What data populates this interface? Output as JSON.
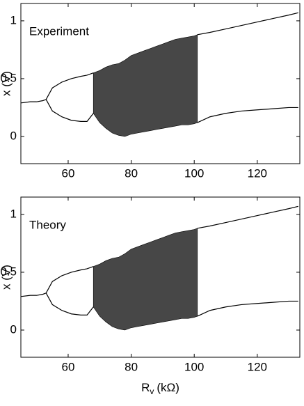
{
  "chart_data": [
    {
      "type": "line",
      "annotation": "Experiment",
      "ylabel": "x (V)",
      "xlim": [
        45,
        133.5
      ],
      "xticks": [
        60,
        80,
        100,
        120
      ],
      "ylim": [
        -0.235,
        1.15
      ],
      "yticks": [
        0,
        0.5,
        1
      ],
      "color": "#000000",
      "series": [
        {
          "x": [
            45,
            48,
            50,
            52,
            53
          ],
          "values": [
            0.29,
            0.3,
            0.3,
            0.31,
            0.32
          ]
        },
        {
          "x": [
            53,
            55,
            58,
            61,
            64,
            66,
            68
          ],
          "values": [
            0.32,
            0.42,
            0.47,
            0.5,
            0.52,
            0.53,
            0.55
          ]
        },
        {
          "x": [
            53,
            55,
            58,
            61,
            64,
            66,
            68
          ],
          "values": [
            0.32,
            0.22,
            0.17,
            0.14,
            0.13,
            0.13,
            0.2
          ]
        },
        {
          "x": [
            101,
            105,
            110,
            115,
            120,
            125,
            130,
            133
          ],
          "values": [
            0.88,
            0.9,
            0.93,
            0.96,
            0.99,
            1.02,
            1.05,
            1.07
          ]
        },
        {
          "x": [
            101,
            105,
            110,
            115,
            120,
            125,
            130,
            133
          ],
          "values": [
            0.12,
            0.17,
            0.2,
            0.22,
            0.23,
            0.24,
            0.25,
            0.25
          ]
        }
      ],
      "bands": [
        {
          "x": [
            68,
            70,
            72,
            74,
            76,
            78,
            80,
            82,
            84,
            86,
            88,
            90,
            92,
            94,
            96,
            98,
            100,
            101
          ],
          "upper": [
            0.55,
            0.57,
            0.6,
            0.62,
            0.63,
            0.66,
            0.7,
            0.72,
            0.74,
            0.76,
            0.78,
            0.8,
            0.82,
            0.84,
            0.85,
            0.86,
            0.87,
            0.88
          ],
          "lower": [
            0.2,
            0.12,
            0.07,
            0.03,
            0.01,
            0.0,
            0.02,
            0.03,
            0.04,
            0.05,
            0.06,
            0.07,
            0.08,
            0.09,
            0.1,
            0.1,
            0.11,
            0.12
          ]
        }
      ]
    },
    {
      "type": "line",
      "annotation": "Theory",
      "ylabel": "x (V)",
      "xlabel": "R",
      "xlabel_sub": "v",
      "xlabel_unit": "(kΩ)",
      "xlim": [
        45,
        133.5
      ],
      "xticks": [
        60,
        80,
        100,
        120
      ],
      "ylim": [
        -0.235,
        1.15
      ],
      "yticks": [
        0,
        0.5,
        1
      ],
      "color": "#000000",
      "series": [
        {
          "x": [
            45,
            48,
            50,
            52,
            53
          ],
          "values": [
            0.29,
            0.3,
            0.3,
            0.31,
            0.32
          ]
        },
        {
          "x": [
            53,
            55,
            58,
            61,
            64,
            66,
            68
          ],
          "values": [
            0.32,
            0.42,
            0.47,
            0.5,
            0.52,
            0.53,
            0.55
          ]
        },
        {
          "x": [
            53,
            55,
            58,
            61,
            64,
            66,
            68
          ],
          "values": [
            0.32,
            0.22,
            0.17,
            0.14,
            0.13,
            0.13,
            0.2
          ]
        },
        {
          "x": [
            101,
            105,
            110,
            115,
            120,
            125,
            130,
            133
          ],
          "values": [
            0.88,
            0.9,
            0.93,
            0.96,
            0.99,
            1.02,
            1.05,
            1.07
          ]
        },
        {
          "x": [
            101,
            105,
            110,
            115,
            120,
            125,
            130,
            133
          ],
          "values": [
            0.12,
            0.17,
            0.2,
            0.22,
            0.23,
            0.24,
            0.25,
            0.25
          ]
        }
      ],
      "bands": [
        {
          "x": [
            68,
            70,
            72,
            74,
            76,
            78,
            80,
            82,
            84,
            86,
            88,
            90,
            92,
            94,
            96,
            98,
            100,
            101
          ],
          "upper": [
            0.55,
            0.57,
            0.6,
            0.62,
            0.63,
            0.66,
            0.7,
            0.72,
            0.74,
            0.76,
            0.78,
            0.8,
            0.82,
            0.84,
            0.85,
            0.86,
            0.87,
            0.88
          ],
          "lower": [
            0.2,
            0.12,
            0.07,
            0.03,
            0.01,
            0.0,
            0.02,
            0.03,
            0.04,
            0.05,
            0.06,
            0.07,
            0.08,
            0.09,
            0.1,
            0.1,
            0.11,
            0.12
          ]
        }
      ]
    }
  ]
}
